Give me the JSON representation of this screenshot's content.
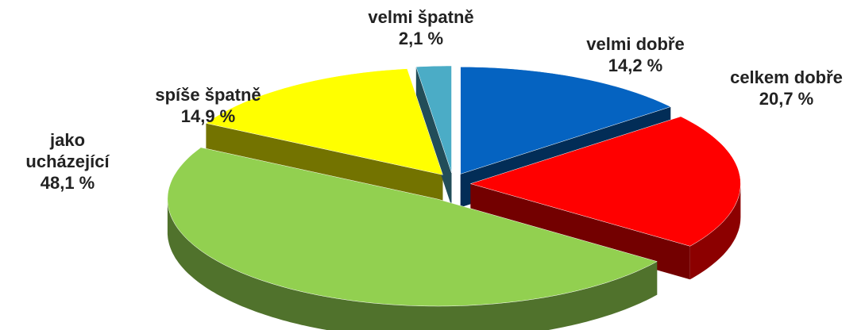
{
  "chart_data": {
    "type": "pie",
    "categories": [
      "velmi dobře",
      "celkem dobře",
      "jako ucházející",
      "spíše špatně",
      "velmi špatně"
    ],
    "values": [
      14.2,
      20.7,
      48.1,
      14.9,
      2.1
    ],
    "value_labels": [
      "14,2 %",
      "20,7 %",
      "48,1 %",
      "14,9 %",
      "2,1 %"
    ],
    "colors": [
      "#0563c1",
      "#ff0000",
      "#92d050",
      "#ffff00",
      "#4bacc6"
    ]
  }
}
